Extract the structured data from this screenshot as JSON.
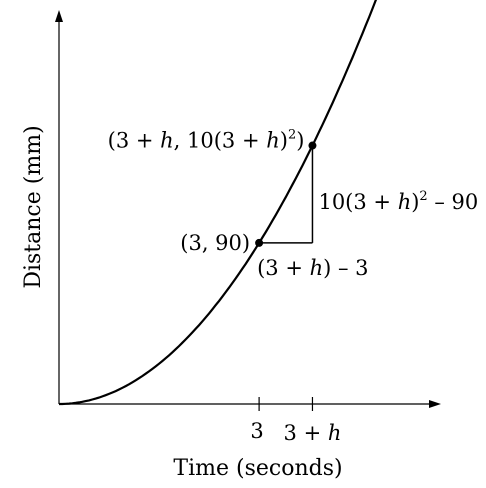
{
  "chart_data": {
    "type": "line",
    "xlabel": "Time (seconds)",
    "ylabel": "Distance (mm)",
    "function": "10x^2",
    "curve": {
      "x": [
        0,
        0.5,
        1,
        1.5,
        2,
        2.5,
        3,
        3.5,
        4,
        4.5,
        5,
        5.5,
        5.65
      ],
      "y": [
        0,
        2.5,
        10,
        22.5,
        40,
        62.5,
        90,
        122.5,
        160,
        202.5,
        250,
        302.5,
        319.2
      ]
    },
    "x_ticks": [
      {
        "value": 3,
        "label": "3"
      },
      {
        "value": 3.8,
        "label_parts": [
          "3 + ",
          "h"
        ]
      }
    ],
    "points": [
      {
        "x": 3,
        "y": 90,
        "label": "(3, 90)"
      },
      {
        "x": 3.8,
        "y": 144.4,
        "label_parts": [
          "(3 + ",
          "h",
          ", 10(3 + ",
          "h",
          ")",
          "2",
          ")"
        ]
      }
    ],
    "annotations": {
      "run_parts": [
        "(3 + ",
        "h",
        ") – 3"
      ],
      "rise_parts": [
        "10(3 + ",
        "h",
        ")",
        "2",
        " – 90"
      ]
    },
    "colors": {
      "ink": "#000000",
      "background": "#ffffff"
    }
  }
}
